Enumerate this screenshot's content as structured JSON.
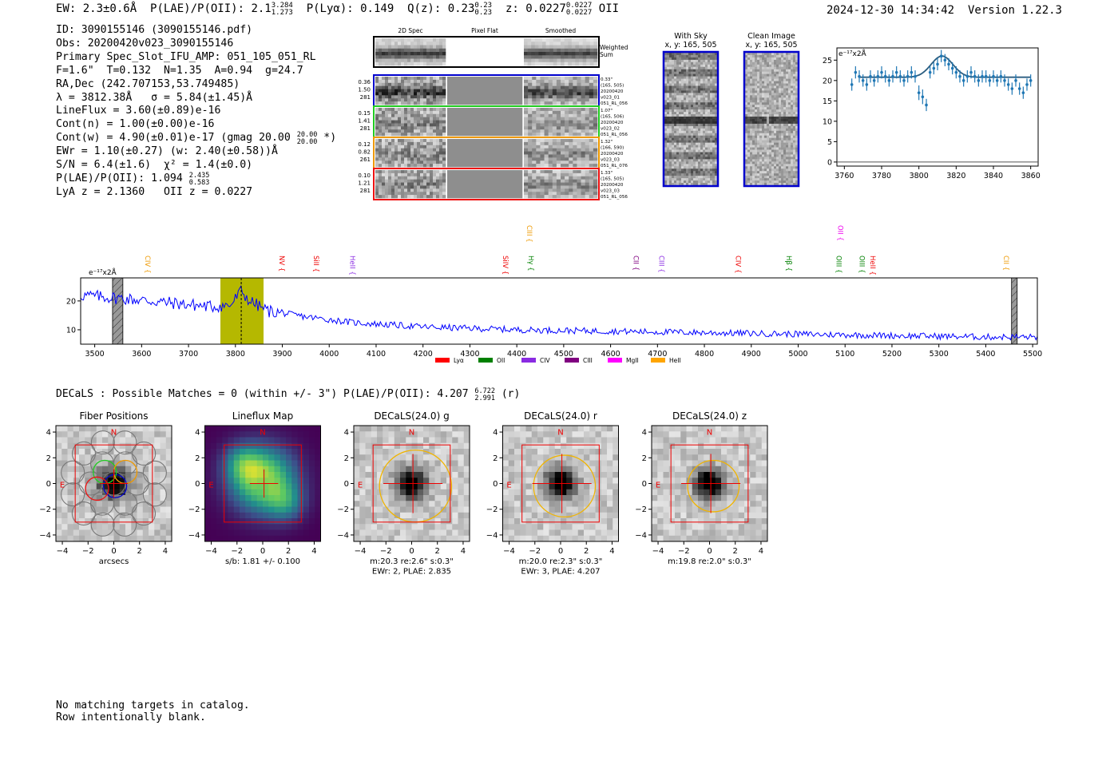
{
  "header": {
    "ew": "EW: 2.3±0.6Å",
    "plae_label": "P(LAE)/P(OII): 2.1",
    "plae_hi": "3.284",
    "plae_lo": "1.273",
    "plya": "P(Lyα): 0.149",
    "qz_label": "Q(z): 0.23",
    "qz_hi": "0.23",
    "qz_lo": "0.23",
    "z_label": "z: 0.0227",
    "z_hi": "0.0227",
    "z_lo": "0.0227",
    "z_line": "OII",
    "timestamp": "2024-12-30 14:34:42",
    "version": "Version 1.22.3"
  },
  "info": {
    "id": "ID: 3090155146 (3090155146.pdf)",
    "obs": "Obs: 20200420v023_3090155146",
    "primary": "Primary Spec_Slot_IFU_AMP: 051_105_051_RL",
    "params": "F=1.6\"  T=0.132  N=1.35  A=0.94  g=24.7",
    "radec": "RA,Dec (242.707153,53.749485)",
    "lambda": "λ = 3812.38Å   σ = 5.84(±1.45)Å",
    "lineflux": "LineFlux = 3.60(±0.89)e-16",
    "contn": "Cont(n) = 1.00(±0.00)e-16",
    "contw_a": "Cont(w) = 4.90(±0.01)e-17 (gmag 20.00",
    "contw_hi": "20.00",
    "contw_lo": "20.00",
    "contw_b": "*)",
    "ewr": "EWr = 1.10(±0.27) (w: 2.40(±0.58))Å",
    "sn": "S/N = 6.4(±1.6)  χ² = 1.4(±0.0)",
    "plae2": "P(LAE)/P(OII): 1.094",
    "plae2_hi": "2.435",
    "plae2_lo": "0.583",
    "lyaz": "LyA z = 2.1360   OII z = 0.0227"
  },
  "cutouts": {
    "col_titles": [
      "2D Spec",
      "Pixel Flat",
      "Smoothed"
    ],
    "weighted_sum": "Weighted Sum",
    "rows": [
      {
        "left": [
          "0.36",
          "1.50",
          "281"
        ],
        "right": [
          "0.33\"",
          "(165, 505)",
          "20200420",
          "v023_01",
          "051_RL_056"
        ],
        "color": "#0000cc"
      },
      {
        "left": [
          "0.15",
          "1.41",
          "281"
        ],
        "right": [
          "1.07\"",
          "(165, 506)",
          "20200420",
          "v023_02",
          "051_RL_056"
        ],
        "color": "#22cc22"
      },
      {
        "left": [
          "0.12",
          "0.82",
          "261"
        ],
        "right": [
          "1.32\"",
          "(166, 590)",
          "20200420",
          "v023_03",
          "051_RL_076"
        ],
        "color": "#ee9900"
      },
      {
        "left": [
          "0.10",
          "1.21",
          "281"
        ],
        "right": [
          "1.33\"",
          "(165, 505)",
          "20200420",
          "v023_03",
          "051_RL_056"
        ],
        "color": "#ee1111"
      }
    ],
    "with_sky_title": "With Sky",
    "with_sky_sub": "x, y: 165, 505",
    "clean_title": "Clean Image",
    "clean_sub": "x, y: 165, 505"
  },
  "colors": {
    "spectrum": "#0000ff",
    "errorbar": "#1f77b4",
    "fit": "#2a5d80",
    "highlight": "#b5b800",
    "marker_red": "#ee0000"
  },
  "chart_data": [
    {
      "type": "scatter",
      "name": "zoom-emission-line",
      "unit_label": "e⁻¹⁷x2Å",
      "x": [
        3764,
        3766,
        3768,
        3770,
        3772,
        3774,
        3776,
        3778,
        3780,
        3782,
        3784,
        3786,
        3788,
        3790,
        3792,
        3794,
        3796,
        3798,
        3800,
        3802,
        3804,
        3806,
        3808,
        3810,
        3812,
        3814,
        3816,
        3818,
        3820,
        3822,
        3824,
        3826,
        3828,
        3830,
        3832,
        3834,
        3836,
        3838,
        3840,
        3842,
        3844,
        3846,
        3848,
        3850,
        3852,
        3854,
        3856,
        3858,
        3860
      ],
      "y": [
        19,
        22,
        21,
        20,
        19,
        21,
        20,
        21,
        22,
        21,
        20,
        21,
        22,
        21,
        20,
        21,
        22,
        21,
        17,
        16,
        14,
        22,
        23,
        24,
        26,
        25,
        24,
        23,
        22,
        21,
        20,
        21,
        22,
        21,
        20,
        21,
        21,
        20,
        21,
        20,
        21,
        20,
        19,
        18,
        20,
        18,
        17,
        19,
        20
      ],
      "err": [
        1.5,
        1.5,
        1.5,
        1.5,
        1.5,
        1.5,
        1.5,
        1.5,
        1.5,
        1.5,
        1.5,
        1.5,
        1.5,
        1.5,
        1.5,
        1.5,
        1.5,
        1.5,
        1.8,
        1.8,
        1.5,
        1.5,
        1.5,
        1.5,
        1.5,
        1.5,
        1.5,
        1.5,
        1.5,
        1.5,
        1.5,
        1.5,
        1.5,
        1.5,
        1.5,
        1.5,
        1.5,
        1.5,
        1.5,
        1.5,
        1.5,
        1.5,
        1.5,
        1.5,
        1.5,
        1.5,
        1.5,
        1.5,
        1.5
      ],
      "fit": {
        "baseline": 20.8,
        "amplitude": 5.2,
        "center": 3812.4,
        "sigma": 5.84,
        "x_range": [
          3768,
          3860
        ]
      },
      "xlim": [
        3756,
        3864
      ],
      "ylim": [
        -1,
        28
      ],
      "xticks": [
        3760,
        3780,
        3800,
        3820,
        3840,
        3860
      ],
      "yticks": [
        0,
        5,
        10,
        15,
        20,
        25
      ]
    },
    {
      "type": "line",
      "name": "full-spectrum",
      "unit_label": "e⁻¹⁷x2Å",
      "x_range": [
        3470,
        5510
      ],
      "knots_x": [
        3470,
        3550,
        3650,
        3750,
        3790,
        3812,
        3830,
        3870,
        3950,
        4050,
        4200,
        4400,
        4600,
        4800,
        5000,
        5200,
        5400,
        5510
      ],
      "knots_y": [
        22,
        21,
        19.5,
        18,
        18.5,
        23.5,
        20,
        16.5,
        14.5,
        12.5,
        11,
        10,
        9.5,
        9,
        8.5,
        8,
        7.5,
        7.5
      ],
      "noise_amplitude": 1.1,
      "xlim": [
        3470,
        5510
      ],
      "ylim": [
        5,
        28
      ],
      "xticks": [
        3500,
        3600,
        3700,
        3800,
        3900,
        4000,
        4100,
        4200,
        4300,
        4400,
        4500,
        4600,
        4700,
        4800,
        4900,
        5000,
        5100,
        5200,
        5300,
        5400,
        5500
      ],
      "yticks": [
        10,
        20
      ],
      "highlight_band": [
        3768,
        3860
      ],
      "center_line": 3812.4,
      "hatched_regions": [
        [
          3538,
          3560
        ],
        [
          5455,
          5467
        ]
      ],
      "line_labels": [
        {
          "label": "CIV",
          "wave": 3603,
          "color": "#ee9900",
          "tier": 1
        },
        {
          "label": "NV",
          "wave": 3889,
          "color": "#ee0000",
          "tier": 1
        },
        {
          "label": "SiII",
          "wave": 3962,
          "color": "#ee0000",
          "tier": 1
        },
        {
          "label": "HeII",
          "wave": 4040,
          "color": "#8a2be2",
          "tier": 1
        },
        {
          "label": "SiIV",
          "wave": 4366,
          "color": "#ee0000",
          "tier": 1
        },
        {
          "label": "CIII",
          "wave": 4417,
          "color": "#ee9900",
          "tier": 0
        },
        {
          "label": "Hγ",
          "wave": 4420,
          "color": "#008000",
          "tier": 1
        },
        {
          "label": "CII",
          "wave": 4644,
          "color": "#800080",
          "tier": 1
        },
        {
          "label": "CIII",
          "wave": 4699,
          "color": "#8a2be2",
          "tier": 1
        },
        {
          "label": "CIV",
          "wave": 4862,
          "color": "#ee0000",
          "tier": 1
        },
        {
          "label": "Hβ",
          "wave": 4970,
          "color": "#008000",
          "tier": 1
        },
        {
          "label": "OII",
          "wave": 5080,
          "color": "#ee00ee",
          "tier": 0
        },
        {
          "label": "OIII",
          "wave": 5077,
          "color": "#008000",
          "tier": 1
        },
        {
          "label": "OIII",
          "wave": 5126,
          "color": "#008000",
          "tier": 1
        },
        {
          "label": "HeII",
          "wave": 5149,
          "color": "#ee0000",
          "tier": 1
        },
        {
          "label": "CII",
          "wave": 5433,
          "color": "#ee9900",
          "tier": 1
        }
      ],
      "legend": [
        {
          "label": "Lyα",
          "color": "#ff0000"
        },
        {
          "label": "OII",
          "color": "#008000"
        },
        {
          "label": "CIV",
          "color": "#8a2be2"
        },
        {
          "label": "CIII",
          "color": "#800080"
        },
        {
          "label": "MgII",
          "color": "#ff00ff"
        },
        {
          "label": "HeII",
          "color": "#ffa500"
        }
      ]
    }
  ],
  "decals": {
    "header_a": "DECaLS : Possible Matches = 0 (within +/- 3\")  P(LAE)/P(OII): 4.207",
    "header_hi": "6.722",
    "header_lo": "2.991",
    "header_b": "(r)",
    "panels": [
      {
        "title": "Fiber Positions",
        "caption": [
          "arcsecs"
        ],
        "kind": "fiber"
      },
      {
        "title": "Lineflux Map",
        "caption": [
          "s/b: 1.81 +/- 0.100"
        ],
        "kind": "lineflux"
      },
      {
        "title": "DECaLS(24.0) g",
        "caption": [
          "m:20.3  re:2.6\"  s:0.3\"",
          "EWr: 2, PLAE: 2.835"
        ],
        "kind": "decals",
        "ellipse_r": 2.8
      },
      {
        "title": "DECaLS(24.0) r",
        "caption": [
          "m:20.0  re:2.3\"  s:0.3\"",
          "EWr: 3, PLAE: 4.207"
        ],
        "kind": "decals",
        "ellipse_r": 2.4
      },
      {
        "title": "DECaLS(24.0) z",
        "caption": [
          "m:19.8  re:2.0\"  s:0.3\""
        ],
        "kind": "decals",
        "ellipse_r": 2.0
      }
    ],
    "ticks": [
      -4,
      -2,
      0,
      2,
      4
    ],
    "tick_labels": [
      "−4",
      "−2",
      "0",
      "2",
      "4"
    ],
    "compass_n": "N",
    "compass_e": "E"
  },
  "footer": {
    "line1": "No matching targets in catalog.",
    "line2": "Row intentionally blank."
  }
}
